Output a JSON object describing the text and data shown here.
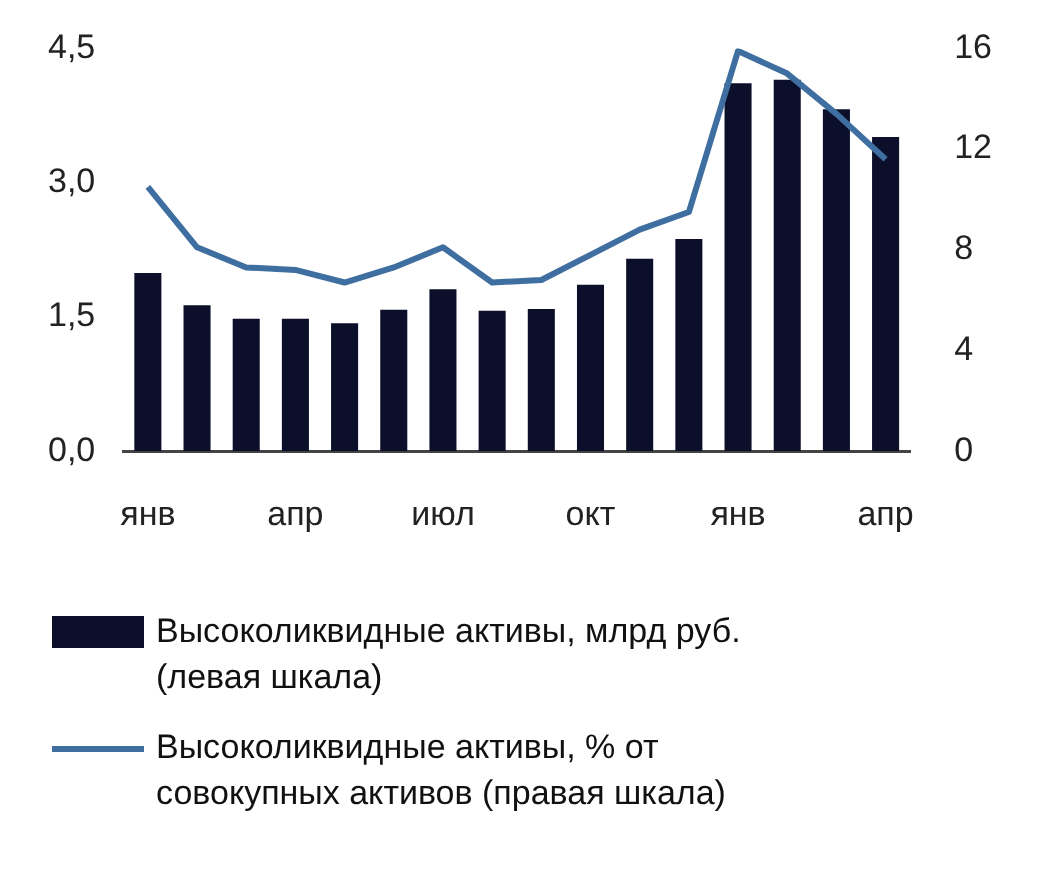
{
  "chart_data": {
    "type": "bar",
    "categories": [
      "янв",
      null,
      null,
      "апр",
      null,
      null,
      "июл",
      null,
      null,
      "окт",
      null,
      null,
      "янв",
      null,
      null,
      "апр"
    ],
    "series": [
      {
        "name": "Высоколиквидные активы, млрд руб. (левая шкала)",
        "color": "#0b0f2a",
        "values": [
          1.99,
          1.63,
          1.48,
          1.48,
          1.43,
          1.58,
          1.81,
          1.57,
          1.59,
          1.86,
          2.15,
          2.37,
          4.11,
          4.15,
          3.82,
          3.51
        ]
      },
      {
        "name": "Высоколиквидные активы, % от совокупных активов (правая шкала)",
        "type": "line",
        "axis": "y2",
        "color": "#3f6fa0",
        "values": [
          10.5,
          8.1,
          7.3,
          7.2,
          6.7,
          7.3,
          8.1,
          6.7,
          6.8,
          7.8,
          8.8,
          9.5,
          15.9,
          15.0,
          13.4,
          11.6
        ]
      }
    ],
    "ylim": [
      0,
      4.5
    ],
    "yticks": [
      {
        "value": 0,
        "label": "0,0"
      },
      {
        "value": 1.5,
        "label": "1,5"
      },
      {
        "value": 3,
        "label": "3,0"
      },
      {
        "value": 4.5,
        "label": "4,5"
      }
    ],
    "y2lim": [
      0,
      16
    ],
    "y2ticks": [
      0,
      4,
      8,
      12,
      16
    ],
    "grid": false,
    "legend": "bottom",
    "marker": "none"
  }
}
